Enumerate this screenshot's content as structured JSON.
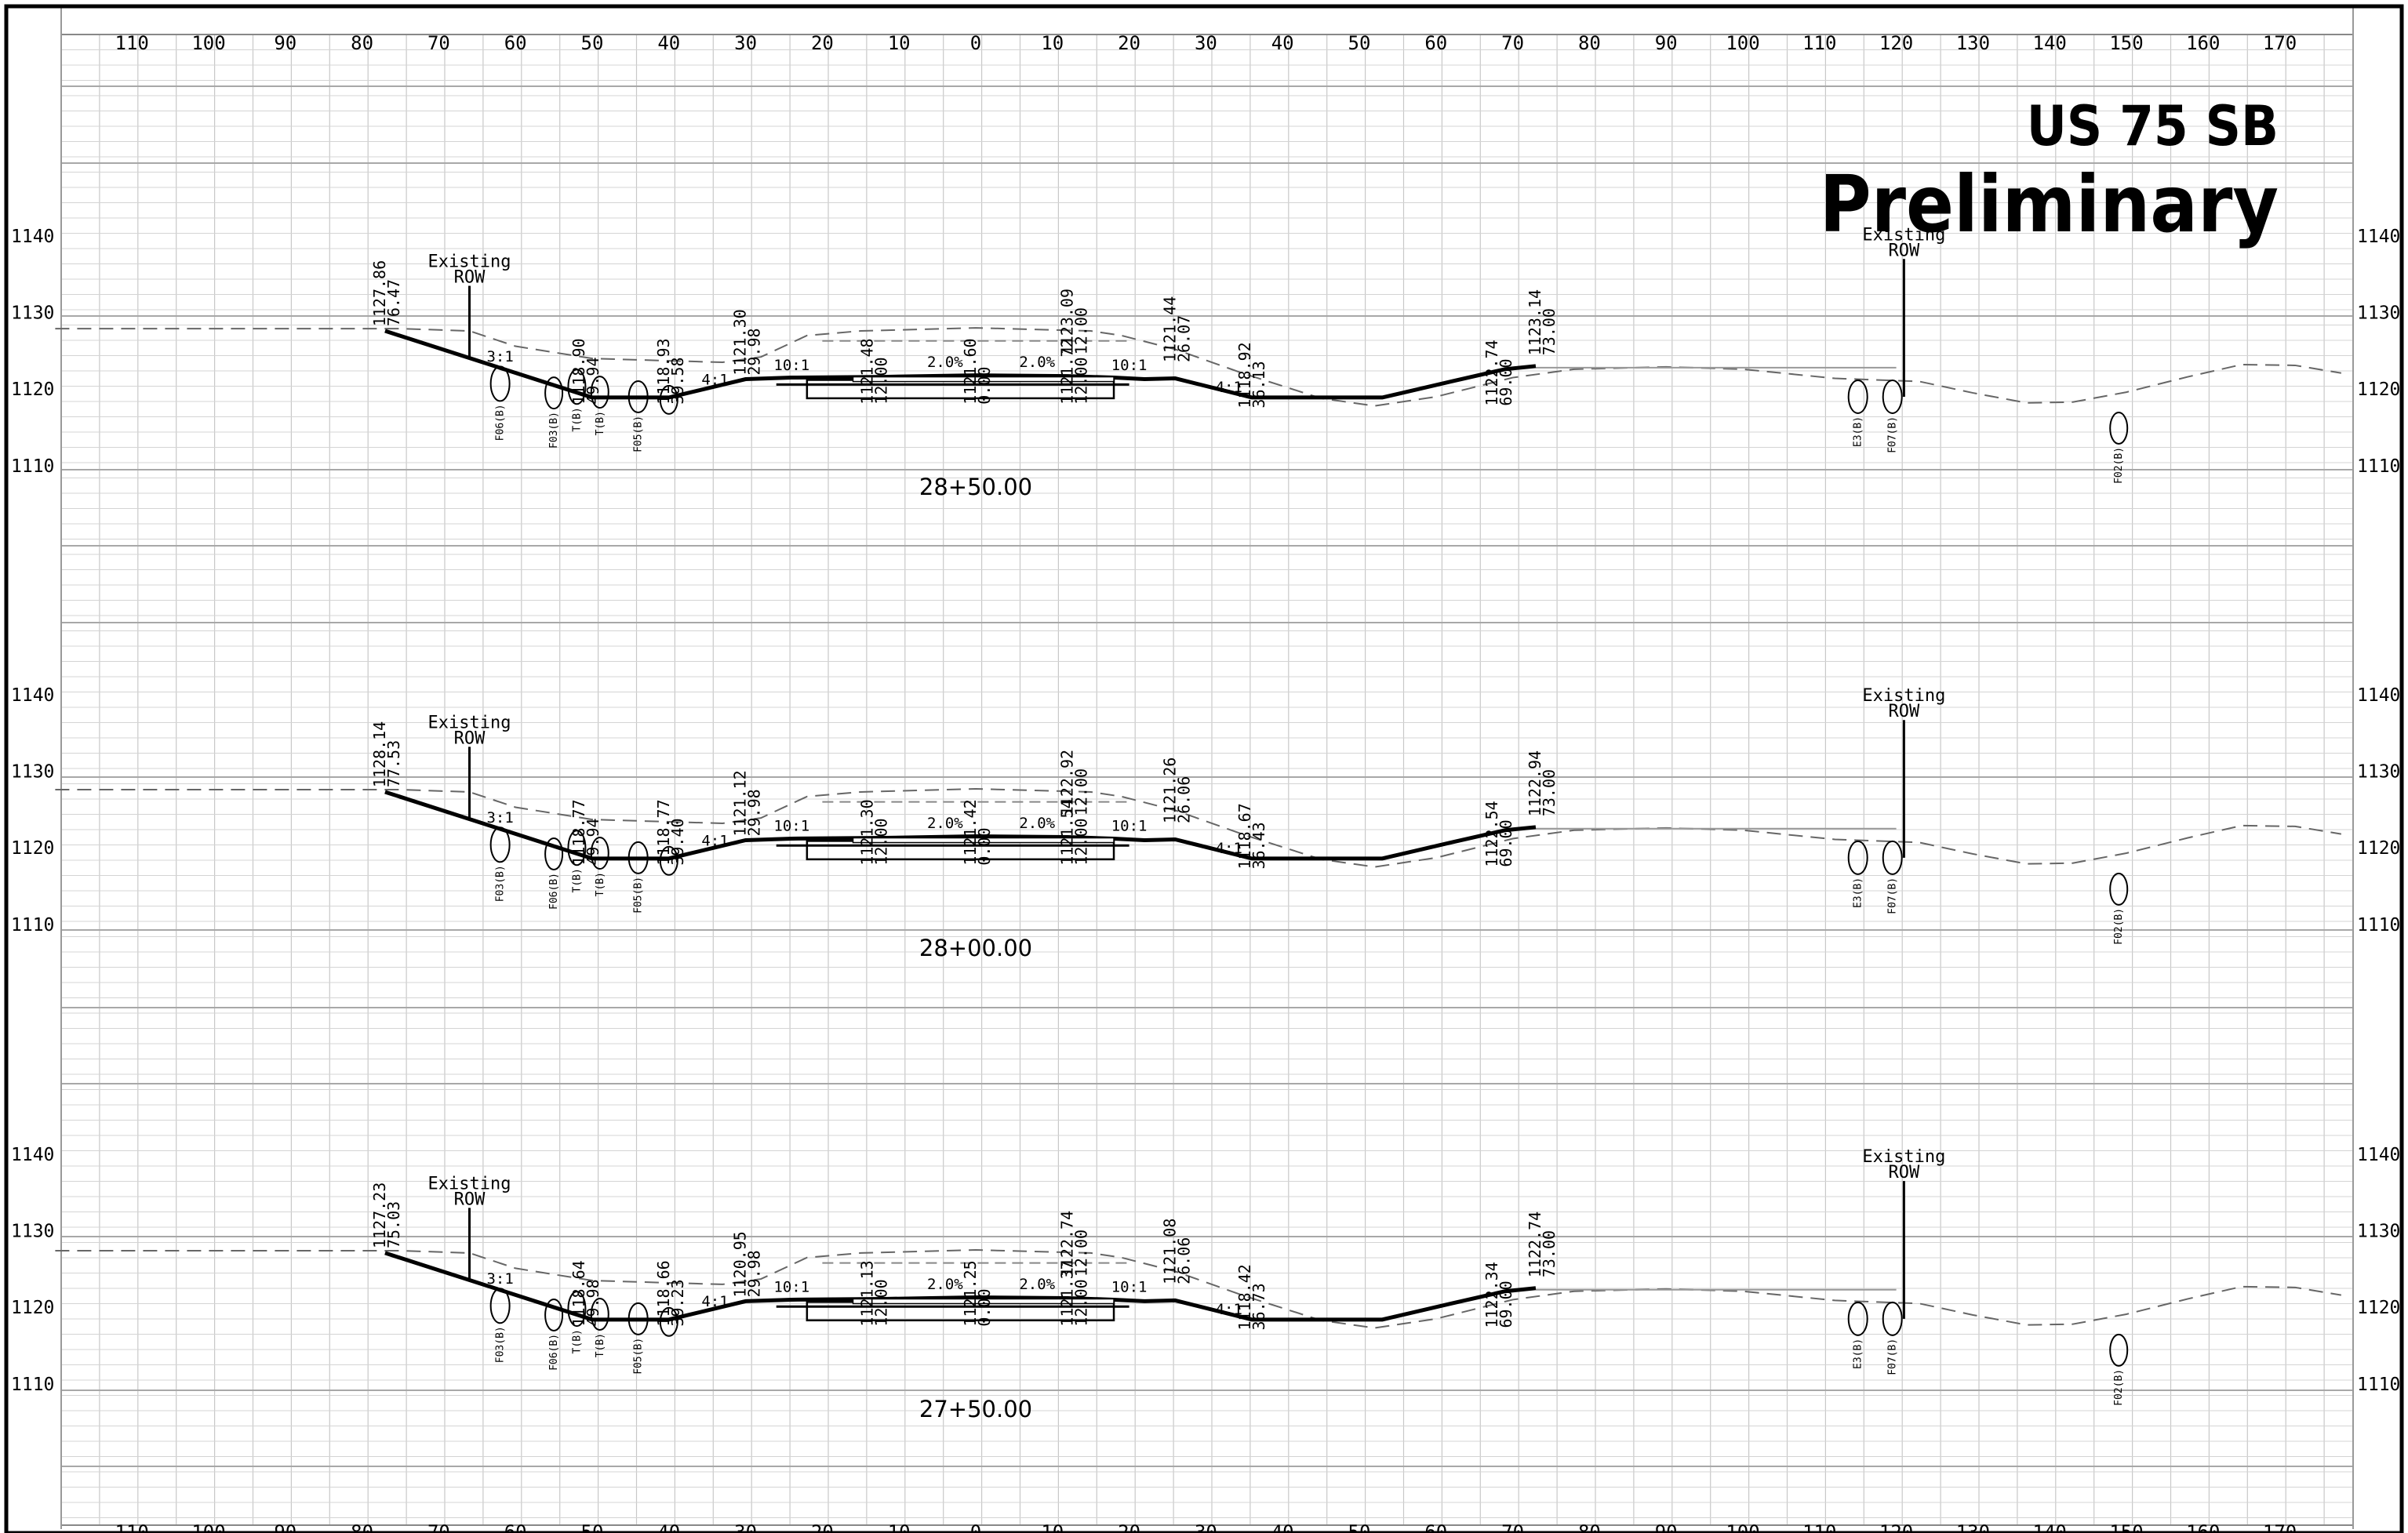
{
  "title": {
    "route": "US 75 SB",
    "status": "Preliminary"
  },
  "offset_scale": {
    "left": [
      "110",
      "100",
      "90",
      "80",
      "70",
      "60",
      "50",
      "40",
      "30",
      "20",
      "10"
    ],
    "center": "0",
    "right": [
      "10",
      "20",
      "30",
      "40",
      "50",
      "60",
      "70",
      "80",
      "90",
      "100",
      "110",
      "120",
      "130",
      "140",
      "150",
      "160",
      "170"
    ]
  },
  "elevation_labels": [
    "1140",
    "1130",
    "1120",
    "1110"
  ],
  "row_label": {
    "line1": "Existing",
    "line2": "ROW"
  },
  "slopes": {
    "left_ditch": "4:1",
    "left_shoulder": "10:1",
    "left_lane": "2.0%",
    "right_lane": "2.0%",
    "right_shoulder": "10:1",
    "right_ditch": "4:1",
    "left_fore": "3:1"
  },
  "sections": [
    {
      "station": "28+50.00",
      "annotations": [
        {
          "elev": "1127.86",
          "offset": "76.47"
        },
        {
          "elev": "1118.90",
          "offset": "49.94"
        },
        {
          "elev": "1118.93",
          "offset": "39.58"
        },
        {
          "elev": "1121.30",
          "offset": "29.98"
        },
        {
          "elev": "1121.48",
          "offset": "12.00"
        },
        {
          "elev": "1121.60",
          "offset": "0.00"
        },
        {
          "elev": "1121.72",
          "offset": "12.00"
        },
        {
          "elev": "1123.09",
          "offset": "12.00"
        },
        {
          "elev": "1121.44",
          "offset": "26.07"
        },
        {
          "elev": "1118.92",
          "offset": "36.13"
        },
        {
          "elev": "1122.74",
          "offset": "69.00"
        },
        {
          "elev": "1123.14",
          "offset": "73.00"
        }
      ],
      "features": [
        "F06(B)",
        "F03(B)",
        "T(B)",
        "T(B)",
        "F05(B)",
        "E3(B)",
        "F07(B)",
        "F02(B)"
      ]
    },
    {
      "station": "28+00.00",
      "annotations": [
        {
          "elev": "1128.14",
          "offset": "77.53"
        },
        {
          "elev": "1118.77",
          "offset": "49.94"
        },
        {
          "elev": "1118.77",
          "offset": "39.40"
        },
        {
          "elev": "1121.12",
          "offset": "29.98"
        },
        {
          "elev": "1121.30",
          "offset": "12.00"
        },
        {
          "elev": "1121.42",
          "offset": "0.00"
        },
        {
          "elev": "1121.54",
          "offset": "12.00"
        },
        {
          "elev": "1122.92",
          "offset": "12.00"
        },
        {
          "elev": "1121.26",
          "offset": "26.06"
        },
        {
          "elev": "1118.67",
          "offset": "36.43"
        },
        {
          "elev": "1122.54",
          "offset": "69.00"
        },
        {
          "elev": "1122.94",
          "offset": "73.00"
        }
      ],
      "features": [
        "F03(B)",
        "F06(B)",
        "T(B)",
        "T(B)",
        "F05(B)",
        "E3(B)",
        "F07(B)",
        "F02(B)"
      ]
    },
    {
      "station": "27+50.00",
      "annotations": [
        {
          "elev": "1127.23",
          "offset": "75.03"
        },
        {
          "elev": "1118.64",
          "offset": "49.98"
        },
        {
          "elev": "1118.66",
          "offset": "39.23"
        },
        {
          "elev": "1120.95",
          "offset": "29.98"
        },
        {
          "elev": "1121.13",
          "offset": "12.00"
        },
        {
          "elev": "1121.25",
          "offset": "0.00"
        },
        {
          "elev": "1121.37",
          "offset": "12.00"
        },
        {
          "elev": "1122.74",
          "offset": "12.00"
        },
        {
          "elev": "1121.08",
          "offset": "26.06"
        },
        {
          "elev": "1118.42",
          "offset": "36.73"
        },
        {
          "elev": "1122.34",
          "offset": "69.00"
        },
        {
          "elev": "1122.74",
          "offset": "73.00"
        }
      ],
      "features": [
        "F03(B)",
        "F06(B)",
        "T(B)",
        "T(B)",
        "F05(B)",
        "E3(B)",
        "F07(B)",
        "F02(B)"
      ]
    }
  ]
}
